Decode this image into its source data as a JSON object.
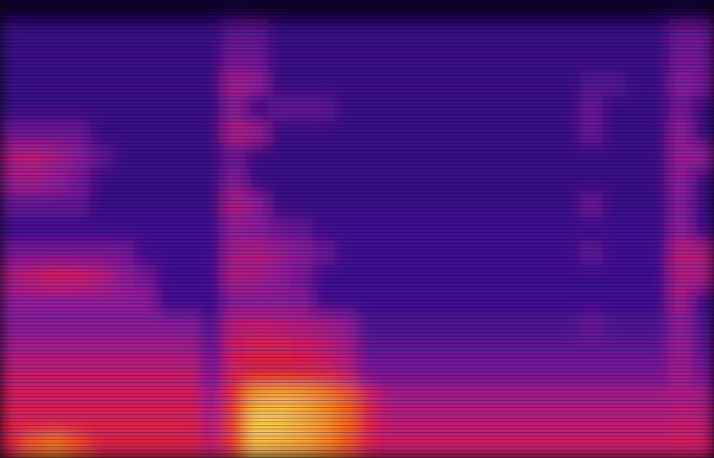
{
  "chart_data": {
    "type": "heatmap",
    "tick_labels": false,
    "zlim": [
      0,
      100
    ],
    "cells": [
      [
        12,
        12,
        12,
        12,
        12,
        12,
        12,
        12,
        12,
        12,
        16,
        12,
        12,
        12,
        12,
        12,
        12,
        12,
        12,
        12,
        12,
        12,
        12,
        12,
        12,
        12,
        12,
        12,
        12,
        12,
        16,
        12
      ],
      [
        30,
        30,
        30,
        30,
        30,
        30,
        30,
        30,
        30,
        30,
        38,
        38,
        30,
        30,
        30,
        30,
        30,
        30,
        30,
        30,
        30,
        30,
        30,
        30,
        30,
        30,
        30,
        30,
        30,
        30,
        40,
        40
      ],
      [
        30,
        30,
        30,
        30,
        30,
        30,
        30,
        30,
        30,
        30,
        42,
        40,
        30,
        30,
        30,
        30,
        30,
        30,
        30,
        30,
        30,
        30,
        30,
        30,
        30,
        30,
        30,
        30,
        30,
        30,
        42,
        40
      ],
      [
        30,
        30,
        30,
        30,
        30,
        30,
        30,
        30,
        30,
        30,
        50,
        46,
        30,
        30,
        30,
        30,
        30,
        30,
        30,
        30,
        30,
        30,
        30,
        30,
        30,
        30,
        36,
        36,
        30,
        30,
        44,
        42
      ],
      [
        30,
        30,
        30,
        30,
        30,
        30,
        30,
        30,
        30,
        30,
        44,
        30,
        38,
        38,
        38,
        30,
        30,
        30,
        30,
        30,
        30,
        30,
        30,
        30,
        30,
        30,
        40,
        30,
        30,
        30,
        42,
        30
      ],
      [
        40,
        40,
        40,
        40,
        30,
        30,
        30,
        30,
        30,
        30,
        52,
        48,
        30,
        30,
        30,
        30,
        30,
        30,
        30,
        30,
        30,
        30,
        30,
        30,
        30,
        30,
        40,
        30,
        30,
        30,
        46,
        30
      ],
      [
        52,
        54,
        50,
        44,
        38,
        30,
        30,
        30,
        30,
        30,
        40,
        30,
        30,
        30,
        30,
        30,
        30,
        30,
        30,
        30,
        30,
        30,
        30,
        30,
        30,
        30,
        30,
        30,
        30,
        30,
        48,
        46
      ],
      [
        48,
        50,
        46,
        42,
        30,
        30,
        30,
        30,
        30,
        30,
        44,
        30,
        30,
        30,
        30,
        30,
        30,
        30,
        30,
        30,
        30,
        30,
        30,
        30,
        30,
        30,
        30,
        30,
        30,
        30,
        46,
        30
      ],
      [
        38,
        38,
        38,
        38,
        30,
        30,
        30,
        30,
        30,
        30,
        52,
        46,
        30,
        30,
        30,
        30,
        30,
        30,
        30,
        30,
        30,
        30,
        30,
        30,
        30,
        30,
        40,
        30,
        30,
        30,
        44,
        30
      ],
      [
        32,
        32,
        32,
        32,
        32,
        32,
        32,
        32,
        32,
        32,
        46,
        44,
        40,
        38,
        32,
        32,
        32,
        32,
        32,
        32,
        32,
        32,
        32,
        32,
        32,
        32,
        32,
        32,
        32,
        32,
        46,
        32
      ],
      [
        42,
        42,
        42,
        42,
        42,
        42,
        32,
        32,
        32,
        32,
        50,
        52,
        48,
        44,
        40,
        32,
        32,
        32,
        32,
        32,
        32,
        32,
        32,
        32,
        32,
        32,
        38,
        32,
        32,
        32,
        54,
        52
      ],
      [
        52,
        56,
        60,
        58,
        54,
        46,
        42,
        32,
        32,
        32,
        52,
        50,
        46,
        42,
        32,
        32,
        32,
        32,
        32,
        32,
        32,
        32,
        32,
        32,
        32,
        32,
        32,
        32,
        32,
        32,
        52,
        50
      ],
      [
        46,
        46,
        46,
        46,
        46,
        46,
        46,
        32,
        32,
        32,
        44,
        44,
        44,
        44,
        32,
        32,
        32,
        32,
        32,
        32,
        32,
        32,
        32,
        32,
        32,
        32,
        32,
        32,
        32,
        32,
        50,
        32
      ],
      [
        44,
        44,
        44,
        44,
        44,
        44,
        44,
        44,
        44,
        34,
        54,
        56,
        54,
        52,
        50,
        46,
        34,
        34,
        34,
        34,
        34,
        34,
        34,
        34,
        34,
        34,
        40,
        34,
        34,
        34,
        46,
        34
      ],
      [
        50,
        50,
        50,
        50,
        50,
        50,
        50,
        50,
        50,
        38,
        58,
        62,
        62,
        60,
        56,
        50,
        38,
        38,
        38,
        38,
        38,
        38,
        38,
        38,
        38,
        38,
        38,
        38,
        38,
        38,
        48,
        38
      ],
      [
        56,
        56,
        56,
        56,
        56,
        56,
        56,
        56,
        56,
        42,
        62,
        66,
        66,
        64,
        62,
        56,
        42,
        42,
        42,
        42,
        42,
        42,
        42,
        42,
        42,
        42,
        42,
        42,
        42,
        42,
        50,
        42
      ],
      [
        60,
        60,
        60,
        60,
        60,
        60,
        60,
        60,
        60,
        48,
        70,
        90,
        92,
        90,
        86,
        80,
        62,
        50,
        50,
        50,
        50,
        50,
        50,
        50,
        50,
        50,
        50,
        50,
        50,
        50,
        52,
        50
      ],
      [
        62,
        62,
        62,
        62,
        62,
        62,
        62,
        62,
        62,
        52,
        74,
        96,
        95,
        92,
        88,
        82,
        64,
        54,
        54,
        54,
        54,
        54,
        54,
        54,
        54,
        54,
        54,
        54,
        54,
        54,
        56,
        54
      ],
      [
        64,
        80,
        84,
        76,
        64,
        64,
        64,
        64,
        64,
        56,
        72,
        94,
        92,
        90,
        86,
        78,
        62,
        58,
        58,
        58,
        58,
        58,
        58,
        58,
        58,
        58,
        58,
        58,
        58,
        58,
        60,
        58
      ]
    ]
  }
}
